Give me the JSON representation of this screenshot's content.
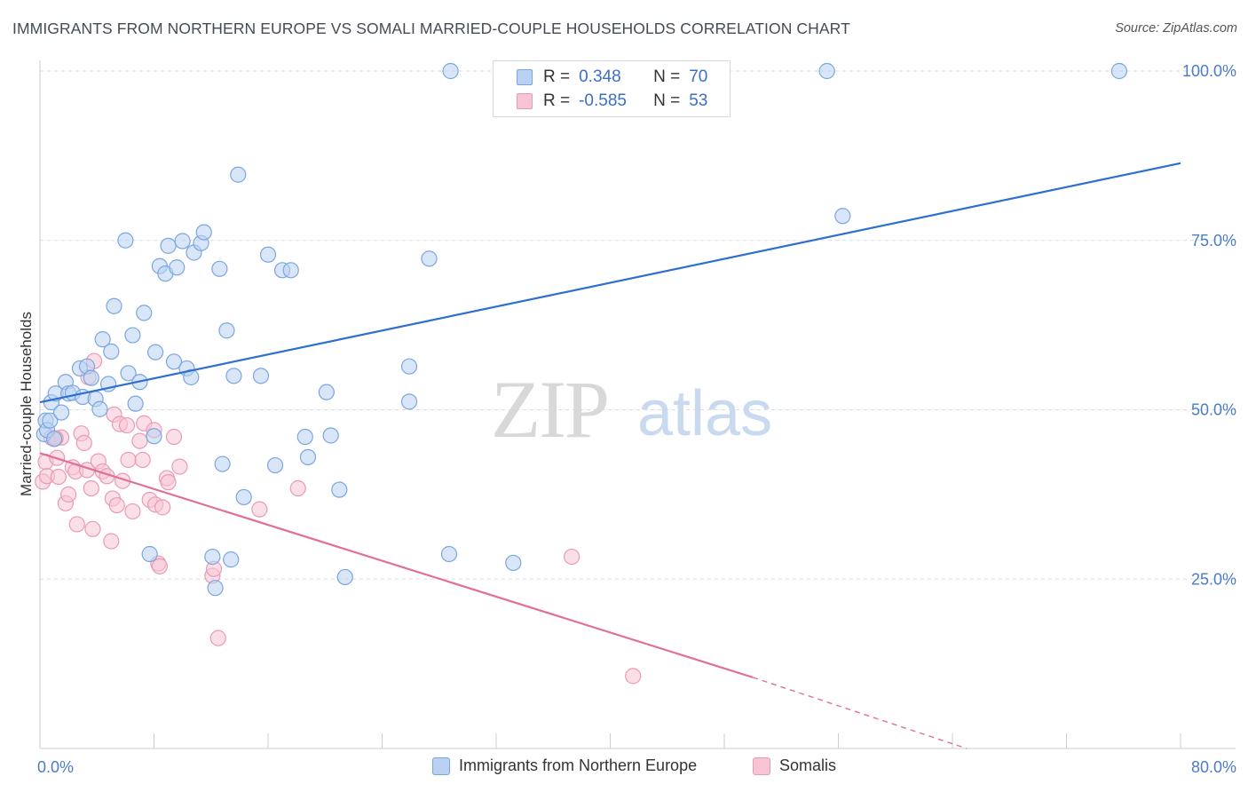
{
  "title": "IMMIGRANTS FROM NORTHERN EUROPE VS SOMALI MARRIED-COUPLE HOUSEHOLDS CORRELATION CHART",
  "source": "Source: ZipAtlas.com",
  "watermark": {
    "zip": "ZIP",
    "atlas": "atlas"
  },
  "legend": {
    "r_label": "R =",
    "n_label": "N =",
    "rows": [
      {
        "r": "0.348",
        "n": "70"
      },
      {
        "r": "-0.585",
        "n": "53"
      }
    ]
  },
  "colors": {
    "blue_fill": "#b9d2f2",
    "blue_stroke": "#7aa6e0",
    "blue_line": "#2f6fcf",
    "pink_fill": "#f6c4d3",
    "pink_stroke": "#e99bb5",
    "pink_line": "#e0709a",
    "grid": "#d7dbe0"
  },
  "chart_data": {
    "type": "scatter",
    "title": "IMMIGRANTS FROM NORTHERN EUROPE VS SOMALI MARRIED-COUPLE HOUSEHOLDS CORRELATION CHART",
    "xlabel": "",
    "ylabel": "Married-couple Households",
    "xlim": [
      0,
      80
    ],
    "ylim": [
      0,
      100
    ],
    "x_tick_labels": [
      "0.0%",
      "80.0%"
    ],
    "y_tick_labels": [
      "25.0%",
      "50.0%",
      "75.0%",
      "100.0%"
    ],
    "y_ticks": [
      25,
      50,
      75,
      100
    ],
    "series": [
      {
        "name": "Immigrants from Northern Europe",
        "color": "blue",
        "r": 0.348,
        "n": 70,
        "trend": {
          "x": [
            0,
            80
          ],
          "y": [
            51.1,
            86.4
          ],
          "dashed_to": null
        },
        "points": [
          [
            0.3,
            46.4
          ],
          [
            0.4,
            48.4
          ],
          [
            0.5,
            47.0
          ],
          [
            0.7,
            48.4
          ],
          [
            0.8,
            51.1
          ],
          [
            1.0,
            45.7
          ],
          [
            1.1,
            52.4
          ],
          [
            1.5,
            49.6
          ],
          [
            1.8,
            54.1
          ],
          [
            2.0,
            52.4
          ],
          [
            2.3,
            52.5
          ],
          [
            2.8,
            56.1
          ],
          [
            3.0,
            51.9
          ],
          [
            3.3,
            56.4
          ],
          [
            3.6,
            54.7
          ],
          [
            3.9,
            51.6
          ],
          [
            4.2,
            50.1
          ],
          [
            4.4,
            60.4
          ],
          [
            4.8,
            53.8
          ],
          [
            5.0,
            58.6
          ],
          [
            5.2,
            65.3
          ],
          [
            6.0,
            75.0
          ],
          [
            6.2,
            55.4
          ],
          [
            6.5,
            61.0
          ],
          [
            6.7,
            50.9
          ],
          [
            7.0,
            54.1
          ],
          [
            7.3,
            64.3
          ],
          [
            7.7,
            28.7
          ],
          [
            8.0,
            46.1
          ],
          [
            8.1,
            58.5
          ],
          [
            8.4,
            71.2
          ],
          [
            8.8,
            70.1
          ],
          [
            9.0,
            74.2
          ],
          [
            9.4,
            57.1
          ],
          [
            9.6,
            71.0
          ],
          [
            10.0,
            74.9
          ],
          [
            10.3,
            56.1
          ],
          [
            10.6,
            54.8
          ],
          [
            10.8,
            73.2
          ],
          [
            11.3,
            74.6
          ],
          [
            11.5,
            76.2
          ],
          [
            12.1,
            28.3
          ],
          [
            12.3,
            23.7
          ],
          [
            12.6,
            70.8
          ],
          [
            12.8,
            42.0
          ],
          [
            13.1,
            61.7
          ],
          [
            13.4,
            27.9
          ],
          [
            13.6,
            55.0
          ],
          [
            13.9,
            84.7
          ],
          [
            14.3,
            37.1
          ],
          [
            15.5,
            55.0
          ],
          [
            16.0,
            72.9
          ],
          [
            16.5,
            41.8
          ],
          [
            17.0,
            70.6
          ],
          [
            17.6,
            70.6
          ],
          [
            18.6,
            46.0
          ],
          [
            18.8,
            43.0
          ],
          [
            20.1,
            52.6
          ],
          [
            20.4,
            46.2
          ],
          [
            21.0,
            38.2
          ],
          [
            21.4,
            25.3
          ],
          [
            25.9,
            56.4
          ],
          [
            25.9,
            51.2
          ],
          [
            27.3,
            72.3
          ],
          [
            28.7,
            28.7
          ],
          [
            28.8,
            100.0
          ],
          [
            33.2,
            27.4
          ],
          [
            55.2,
            100.0
          ],
          [
            56.3,
            78.6
          ],
          [
            75.7,
            100.0
          ]
        ]
      },
      {
        "name": "Somalis",
        "color": "pink",
        "r": -0.585,
        "n": 53,
        "trend": {
          "x": [
            0,
            50
          ],
          "y": [
            43.6,
            10.5
          ],
          "dashed_to": [
            65,
            0
          ]
        },
        "points": [
          [
            0.2,
            39.4
          ],
          [
            0.4,
            42.3
          ],
          [
            0.5,
            40.2
          ],
          [
            0.8,
            45.9
          ],
          [
            1.0,
            45.7
          ],
          [
            1.2,
            42.9
          ],
          [
            1.3,
            40.1
          ],
          [
            1.5,
            45.9
          ],
          [
            1.8,
            36.2
          ],
          [
            2.0,
            37.5
          ],
          [
            2.3,
            41.5
          ],
          [
            2.5,
            40.9
          ],
          [
            2.6,
            33.1
          ],
          [
            2.9,
            46.5
          ],
          [
            3.1,
            45.1
          ],
          [
            3.3,
            41.1
          ],
          [
            3.4,
            54.8
          ],
          [
            3.6,
            38.4
          ],
          [
            3.7,
            32.4
          ],
          [
            3.8,
            57.2
          ],
          [
            4.1,
            42.4
          ],
          [
            4.4,
            40.9
          ],
          [
            4.7,
            40.2
          ],
          [
            5.0,
            30.6
          ],
          [
            5.1,
            36.9
          ],
          [
            5.2,
            49.3
          ],
          [
            5.4,
            35.9
          ],
          [
            5.6,
            47.9
          ],
          [
            5.8,
            39.5
          ],
          [
            6.1,
            47.7
          ],
          [
            6.2,
            42.6
          ],
          [
            6.5,
            35.0
          ],
          [
            7.0,
            45.4
          ],
          [
            7.2,
            42.6
          ],
          [
            7.3,
            48.0
          ],
          [
            7.7,
            36.7
          ],
          [
            8.0,
            47.0
          ],
          [
            8.1,
            36.0
          ],
          [
            8.3,
            27.3
          ],
          [
            8.4,
            26.9
          ],
          [
            8.6,
            35.6
          ],
          [
            8.9,
            39.9
          ],
          [
            9.0,
            39.3
          ],
          [
            9.4,
            46.0
          ],
          [
            9.8,
            41.6
          ],
          [
            12.1,
            25.5
          ],
          [
            12.2,
            26.5
          ],
          [
            12.5,
            16.3
          ],
          [
            15.4,
            35.3
          ],
          [
            18.1,
            38.4
          ],
          [
            37.3,
            28.3
          ],
          [
            41.6,
            10.7
          ],
          [
            1.1,
            45.8
          ]
        ]
      }
    ],
    "bottom_legend": [
      "Immigrants from Northern Europe",
      "Somalis"
    ]
  }
}
